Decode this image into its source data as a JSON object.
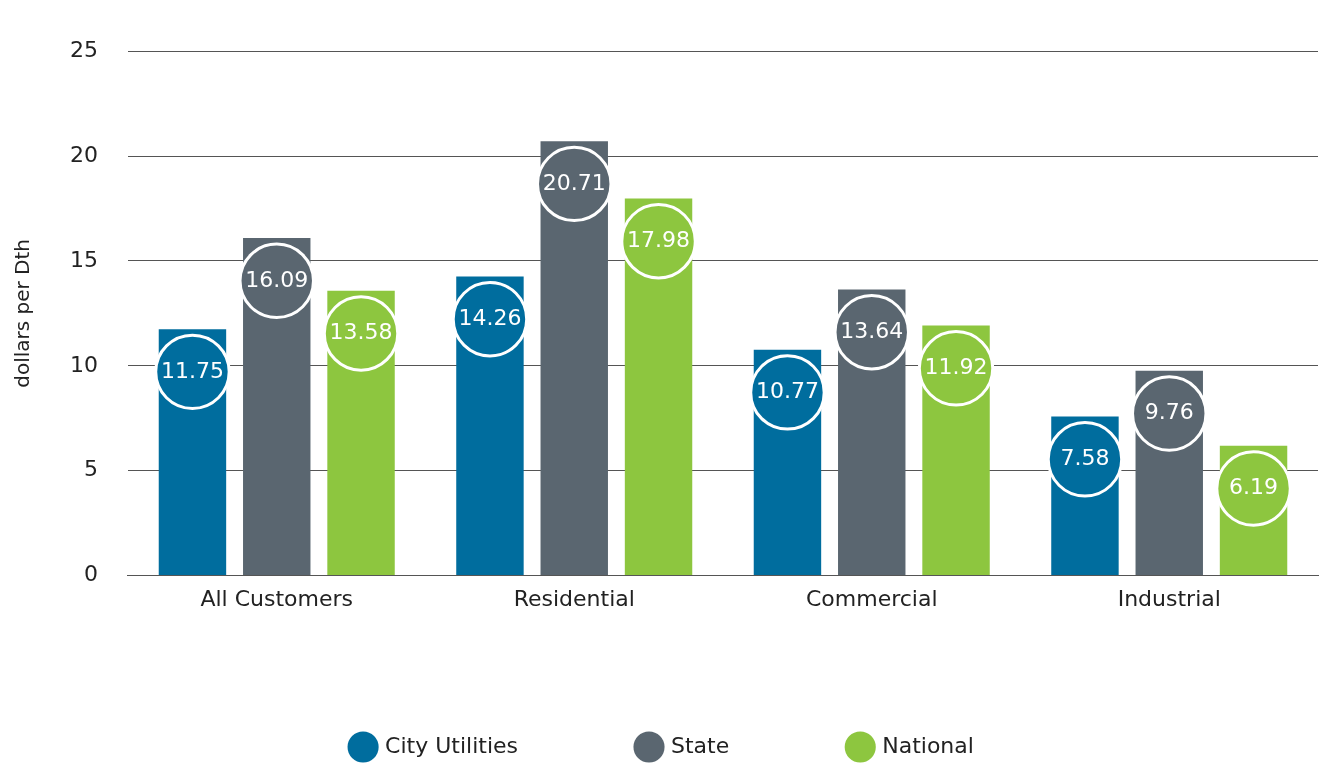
{
  "chart_data": {
    "type": "bar",
    "ylabel": "dollars per Dth",
    "categories": [
      "All Customers",
      "Residential",
      "Commercial",
      "Industrial"
    ],
    "series": [
      {
        "name": "City Utilities",
        "color": "#006d9e",
        "values": [
          11.75,
          14.26,
          10.77,
          7.58
        ]
      },
      {
        "name": "State",
        "color": "#5a6670",
        "values": [
          16.09,
          20.71,
          13.64,
          9.76
        ]
      },
      {
        "name": "National",
        "color": "#8dc63f",
        "values": [
          13.58,
          17.98,
          11.92,
          6.19
        ]
      }
    ],
    "ylim": [
      0,
      25
    ],
    "yticks": [
      0,
      5,
      10,
      15,
      20,
      25
    ],
    "grid": "y",
    "legend": "bottom",
    "data_labels": true
  }
}
